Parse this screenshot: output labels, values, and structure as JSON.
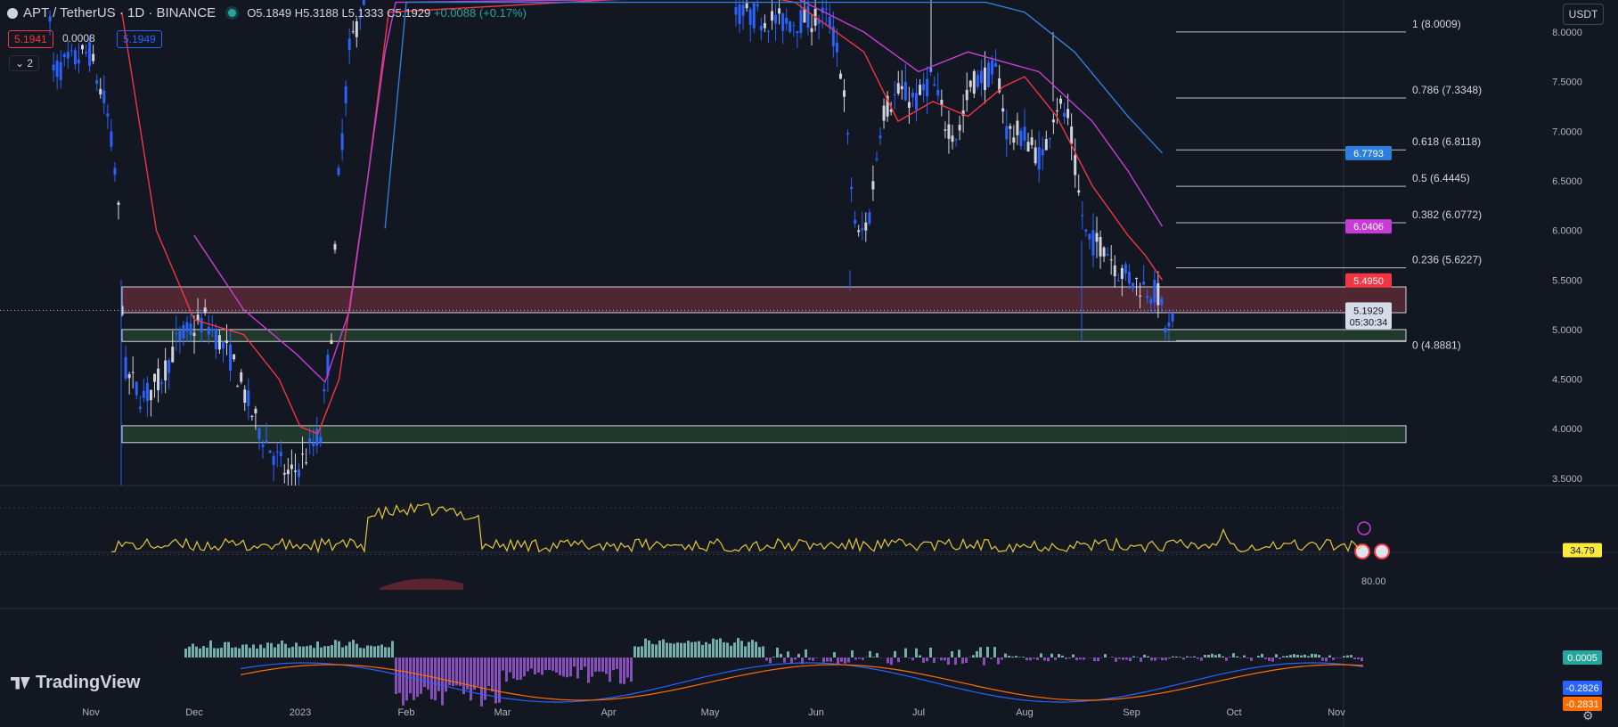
{
  "header": {
    "symbol": "APT / TetherUS · 1D · BINANCE",
    "open": "O5.1849",
    "high": "H5.3188",
    "low": "L5.1333",
    "close": "C5.1929",
    "change": "+0.0088 (+0.17%)",
    "bid": "5.1941",
    "spread": "0.0008",
    "ask": "5.1949",
    "indicators_toggle": "2",
    "currency": "USDT"
  },
  "branding": {
    "logo_text": "TradingView"
  },
  "colors": {
    "bg": "#131722",
    "grid": "#1e222d",
    "up": "#d1d4dc",
    "down": "#2962ff",
    "ema_fast": "#f23645",
    "ema_mid": "#c83cd6",
    "ema_slow": "#2e7fd9",
    "resistance_zone": "#5a2a35",
    "support_zone": "#25402e",
    "fib_line": "#d1d4dc",
    "rsi": "#e5c837",
    "macd_up": "#80cbc4",
    "macd_down": "#9b59d4",
    "macd_line": "#2962ff",
    "signal_line": "#ff6d00"
  },
  "chart_data": [
    {
      "type": "candlestick",
      "title": "APT / TetherUS · 1D · BINANCE",
      "x_axis": {
        "months": [
          "Nov",
          "Dec",
          "2023",
          "Feb",
          "Mar",
          "Apr",
          "May",
          "Jun",
          "Jul",
          "Aug",
          "Sep",
          "Oct",
          "Nov"
        ]
      },
      "y_axis": {
        "ticks": [
          "8.0000",
          "7.5000",
          "7.0000",
          "6.5000",
          "6.0000",
          "5.5000",
          "5.0000",
          "4.5000",
          "4.0000",
          "3.5000"
        ],
        "range": [
          3.45,
          8.3
        ]
      },
      "legend_position": "none",
      "price_lines": [
        {
          "value": 6.7793,
          "label": "6.7793",
          "color": "#2e7fd9",
          "name": "EMA slow"
        },
        {
          "value": 6.0406,
          "label": "6.0406",
          "color": "#c83cd6",
          "name": "EMA mid"
        },
        {
          "value": 5.495,
          "label": "5.4950",
          "color": "#f23645",
          "name": "EMA fast"
        },
        {
          "value": 5.1929,
          "label": "5.1929",
          "countdown": "05:30:34",
          "color": "#b2b5be",
          "name": "last price"
        }
      ],
      "fibonacci": [
        {
          "ratio": "1",
          "value": 8.0009,
          "label": "1 (8.0009)"
        },
        {
          "ratio": "0.786",
          "value": 7.3348,
          "label": "0.786 (7.3348)"
        },
        {
          "ratio": "0.618",
          "value": 6.8118,
          "label": "0.618 (6.8118)"
        },
        {
          "ratio": "0.5",
          "value": 6.4445,
          "label": "0.5 (6.4445)"
        },
        {
          "ratio": "0.382",
          "value": 6.0772,
          "label": "0.382 (6.0772)"
        },
        {
          "ratio": "0.236",
          "value": 5.6227,
          "label": "0.236 (5.6227)"
        },
        {
          "ratio": "0",
          "value": 4.8881,
          "label": "0 (4.8881)"
        }
      ],
      "zones": [
        {
          "kind": "resistance",
          "low": 5.17,
          "high": 5.43
        },
        {
          "kind": "support",
          "low": 4.88,
          "high": 5.0
        },
        {
          "kind": "support",
          "low": 3.86,
          "high": 4.03
        }
      ],
      "series": [
        {
          "name": "EMA fast",
          "color": "#f23645",
          "points": [
            [
              "Nov-10",
              8.2
            ],
            [
              "Nov-20",
              6.0
            ],
            [
              "Dec-01",
              5.1
            ],
            [
              "Dec-15",
              4.95
            ],
            [
              "Dec-25",
              4.5
            ],
            [
              "Jan-01",
              4.02
            ],
            [
              "Jan-06",
              3.95
            ],
            [
              "Jan-12",
              4.5
            ],
            [
              "Jan-20",
              6.5
            ],
            [
              "Jan-26",
              8.2
            ],
            [
              "May-10",
              8.4
            ],
            [
              "May-25",
              8.3
            ],
            [
              "Jun-15",
              7.8
            ],
            [
              "Jun-25",
              7.1
            ],
            [
              "Jul-05",
              7.3
            ],
            [
              "Jul-15",
              7.15
            ],
            [
              "Jul-25",
              7.45
            ],
            [
              "Aug-01",
              7.55
            ],
            [
              "Aug-10",
              7.15
            ],
            [
              "Aug-20",
              6.45
            ],
            [
              "Aug-30",
              5.95
            ],
            [
              "Sep-05",
              5.75
            ],
            [
              "Sep-10",
              5.5
            ]
          ]
        },
        {
          "name": "EMA mid",
          "color": "#c83cd6",
          "points": [
            [
              "Dec-01",
              5.95
            ],
            [
              "Dec-15",
              5.2
            ],
            [
              "Dec-30",
              4.75
            ],
            [
              "Jan-08",
              4.47
            ],
            [
              "Jan-15",
              5.2
            ],
            [
              "Jan-25",
              7.8
            ],
            [
              "Jan-28",
              8.3
            ],
            [
              "May-25",
              8.35
            ],
            [
              "Jun-15",
              8.0
            ],
            [
              "Jul-01",
              7.6
            ],
            [
              "Jul-15",
              7.8
            ],
            [
              "Jul-25",
              7.7
            ],
            [
              "Aug-05",
              7.6
            ],
            [
              "Aug-20",
              7.1
            ],
            [
              "Aug-30",
              6.6
            ],
            [
              "Sep-10",
              6.04
            ]
          ]
        },
        {
          "name": "EMA slow",
          "color": "#2e7fd9",
          "points": [
            [
              "Jan-25",
              6.02
            ],
            [
              "Feb-01",
              8.3
            ],
            [
              "Jul-20",
              8.3
            ],
            [
              "Aug-01",
              8.2
            ],
            [
              "Aug-15",
              7.8
            ],
            [
              "Aug-30",
              7.15
            ],
            [
              "Sep-10",
              6.78
            ]
          ]
        }
      ]
    },
    {
      "type": "line",
      "title": "",
      "y_axis": {
        "ticks": [
          "80.00"
        ],
        "range": [
          20,
          100
        ]
      },
      "last_value": "34.79",
      "series": [
        {
          "name": "RSI",
          "color": "#e5c837",
          "overbought": 70,
          "oversold": 30,
          "last": 34.79
        }
      ]
    },
    {
      "type": "bar",
      "title": "",
      "last_values": {
        "histogram": "0.0005",
        "macd": "-0.2826",
        "signal": "-0.2831"
      },
      "series": [
        {
          "name": "MACD histogram",
          "color": "#80cbc4"
        },
        {
          "name": "MACD",
          "color": "#2962ff"
        },
        {
          "name": "Signal",
          "color": "#ff6d00"
        }
      ]
    }
  ]
}
